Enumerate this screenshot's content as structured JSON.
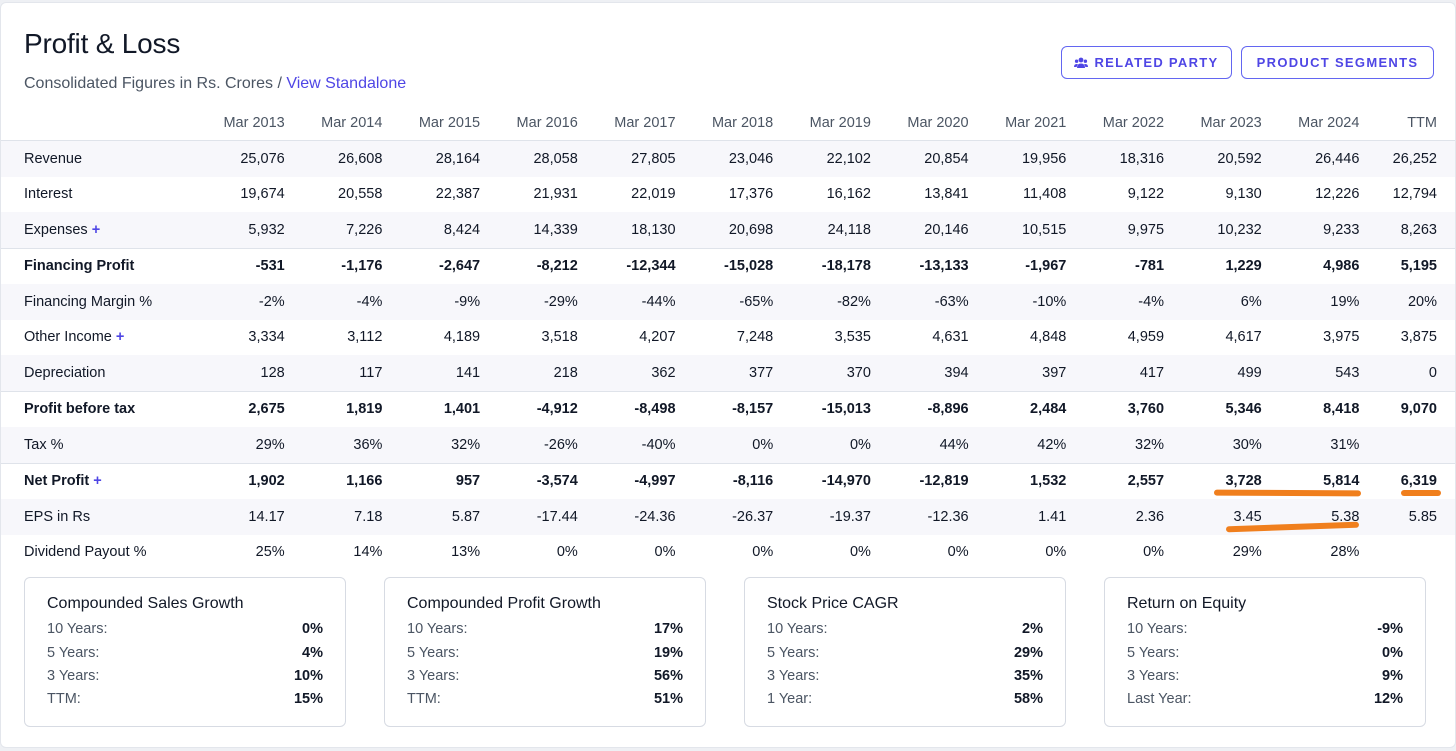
{
  "header": {
    "title": "Profit & Loss",
    "subtitle_prefix": "Consolidated Figures in Rs. Crores / ",
    "subtitle_link": "View Standalone",
    "related_party_label": "RELATED PARTY",
    "product_segments_label": "PRODUCT SEGMENTS"
  },
  "table": {
    "columns": [
      "Mar 2013",
      "Mar 2014",
      "Mar 2015",
      "Mar 2016",
      "Mar 2017",
      "Mar 2018",
      "Mar 2019",
      "Mar 2020",
      "Mar 2021",
      "Mar 2022",
      "Mar 2023",
      "Mar 2024",
      "TTM"
    ],
    "rows": [
      {
        "label": "Revenue",
        "expandable": false,
        "bold": false,
        "values": [
          "25,076",
          "26,608",
          "28,164",
          "28,058",
          "27,805",
          "23,046",
          "22,102",
          "20,854",
          "19,956",
          "18,316",
          "20,592",
          "26,446",
          "26,252"
        ]
      },
      {
        "label": "Interest",
        "expandable": false,
        "bold": false,
        "values": [
          "19,674",
          "20,558",
          "22,387",
          "21,931",
          "22,019",
          "17,376",
          "16,162",
          "13,841",
          "11,408",
          "9,122",
          "9,130",
          "12,226",
          "12,794"
        ]
      },
      {
        "label": "Expenses",
        "expandable": true,
        "bold": false,
        "values": [
          "5,932",
          "7,226",
          "8,424",
          "14,339",
          "18,130",
          "20,698",
          "24,118",
          "20,146",
          "10,515",
          "9,975",
          "10,232",
          "9,233",
          "8,263"
        ]
      },
      {
        "label": "Financing Profit",
        "expandable": false,
        "bold": true,
        "values": [
          "-531",
          "-1,176",
          "-2,647",
          "-8,212",
          "-12,344",
          "-15,028",
          "-18,178",
          "-13,133",
          "-1,967",
          "-781",
          "1,229",
          "4,986",
          "5,195"
        ]
      },
      {
        "label": "Financing Margin %",
        "expandable": false,
        "bold": false,
        "values": [
          "-2%",
          "-4%",
          "-9%",
          "-29%",
          "-44%",
          "-65%",
          "-82%",
          "-63%",
          "-10%",
          "-4%",
          "6%",
          "19%",
          "20%"
        ]
      },
      {
        "label": "Other Income",
        "expandable": true,
        "bold": false,
        "values": [
          "3,334",
          "3,112",
          "4,189",
          "3,518",
          "4,207",
          "7,248",
          "3,535",
          "4,631",
          "4,848",
          "4,959",
          "4,617",
          "3,975",
          "3,875"
        ]
      },
      {
        "label": "Depreciation",
        "expandable": false,
        "bold": false,
        "values": [
          "128",
          "117",
          "141",
          "218",
          "362",
          "377",
          "370",
          "394",
          "397",
          "417",
          "499",
          "543",
          "0"
        ]
      },
      {
        "label": "Profit before tax",
        "expandable": false,
        "bold": true,
        "values": [
          "2,675",
          "1,819",
          "1,401",
          "-4,912",
          "-8,498",
          "-8,157",
          "-15,013",
          "-8,896",
          "2,484",
          "3,760",
          "5,346",
          "8,418",
          "9,070"
        ]
      },
      {
        "label": "Tax %",
        "expandable": false,
        "bold": false,
        "values": [
          "29%",
          "36%",
          "32%",
          "-26%",
          "-40%",
          "0%",
          "0%",
          "44%",
          "42%",
          "32%",
          "30%",
          "31%",
          ""
        ]
      },
      {
        "label": "Net Profit",
        "expandable": true,
        "bold": true,
        "values": [
          "1,902",
          "1,166",
          "957",
          "-3,574",
          "-4,997",
          "-8,116",
          "-14,970",
          "-12,819",
          "1,532",
          "2,557",
          "3,728",
          "5,814",
          "6,319"
        ]
      },
      {
        "label": "EPS in Rs",
        "expandable": false,
        "bold": false,
        "values": [
          "14.17",
          "7.18",
          "5.87",
          "-17.44",
          "-24.36",
          "-26.37",
          "-19.37",
          "-12.36",
          "1.41",
          "2.36",
          "3.45",
          "5.38",
          "5.85"
        ]
      },
      {
        "label": "Dividend Payout %",
        "expandable": false,
        "bold": false,
        "values": [
          "25%",
          "14%",
          "13%",
          "0%",
          "0%",
          "0%",
          "0%",
          "0%",
          "0%",
          "0%",
          "29%",
          "28%",
          ""
        ]
      }
    ]
  },
  "stats": [
    {
      "title": "Compounded Sales Growth",
      "rows": [
        {
          "k": "10 Years:",
          "v": "0%"
        },
        {
          "k": "5 Years:",
          "v": "4%"
        },
        {
          "k": "3 Years:",
          "v": "10%"
        },
        {
          "k": "TTM:",
          "v": "15%"
        }
      ]
    },
    {
      "title": "Compounded Profit Growth",
      "rows": [
        {
          "k": "10 Years:",
          "v": "17%"
        },
        {
          "k": "5 Years:",
          "v": "19%"
        },
        {
          "k": "3 Years:",
          "v": "56%"
        },
        {
          "k": "TTM:",
          "v": "51%"
        }
      ]
    },
    {
      "title": "Stock Price CAGR",
      "rows": [
        {
          "k": "10 Years:",
          "v": "2%"
        },
        {
          "k": "5 Years:",
          "v": "29%"
        },
        {
          "k": "3 Years:",
          "v": "35%"
        },
        {
          "k": "1 Year:",
          "v": "58%"
        }
      ]
    },
    {
      "title": "Return on Equity",
      "rows": [
        {
          "k": "10 Years:",
          "v": "-9%"
        },
        {
          "k": "5 Years:",
          "v": "0%"
        },
        {
          "k": "3 Years:",
          "v": "9%"
        },
        {
          "k": "Last Year:",
          "v": "12%"
        }
      ]
    }
  ],
  "colors": {
    "accent": "#4f46e5",
    "highlight": "#f07f1d",
    "row_alt": "#f7f7fb"
  }
}
